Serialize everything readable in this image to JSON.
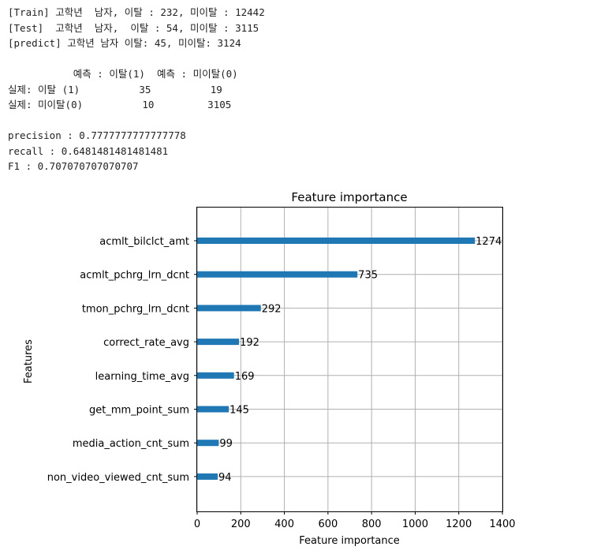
{
  "console": {
    "lines": [
      "[Train] 고학년  남자, 이탈 : 232, 미이탈 : 12442",
      "[Test]  고학년  남자,  이탈 : 54, 미이탈 : 3115",
      "[predict] 고학년 남자 이탈: 45, 미이탈: 3124",
      "",
      "           예측 : 이탈(1)  예측 : 미이탈(0)",
      "실제: 이탈 (1)          35          19",
      "실제: 미이탈(0)          10         3105",
      "",
      "precision : 0.7777777777777778",
      "recall : 0.6481481481481481",
      "F1 : 0.707070707070707"
    ]
  },
  "chart_data": {
    "type": "bar",
    "orientation": "horizontal",
    "title": "Feature importance",
    "xlabel": "Feature importance",
    "ylabel": "Features",
    "categories": [
      "acmlt_bilclct_amt",
      "acmlt_pchrg_lrn_dcnt",
      "tmon_pchrg_lrn_dcnt",
      "correct_rate_avg",
      "learning_time_avg",
      "get_mm_point_sum",
      "media_action_cnt_sum",
      "non_video_viewed_cnt_sum"
    ],
    "values": [
      1274,
      735,
      292,
      192,
      169,
      145,
      99,
      94
    ],
    "xlim": [
      0,
      1400
    ],
    "xticks": [
      0,
      200,
      400,
      600,
      800,
      1000,
      1200,
      1400
    ],
    "grid": true,
    "bar_color": "#1f77b4"
  }
}
